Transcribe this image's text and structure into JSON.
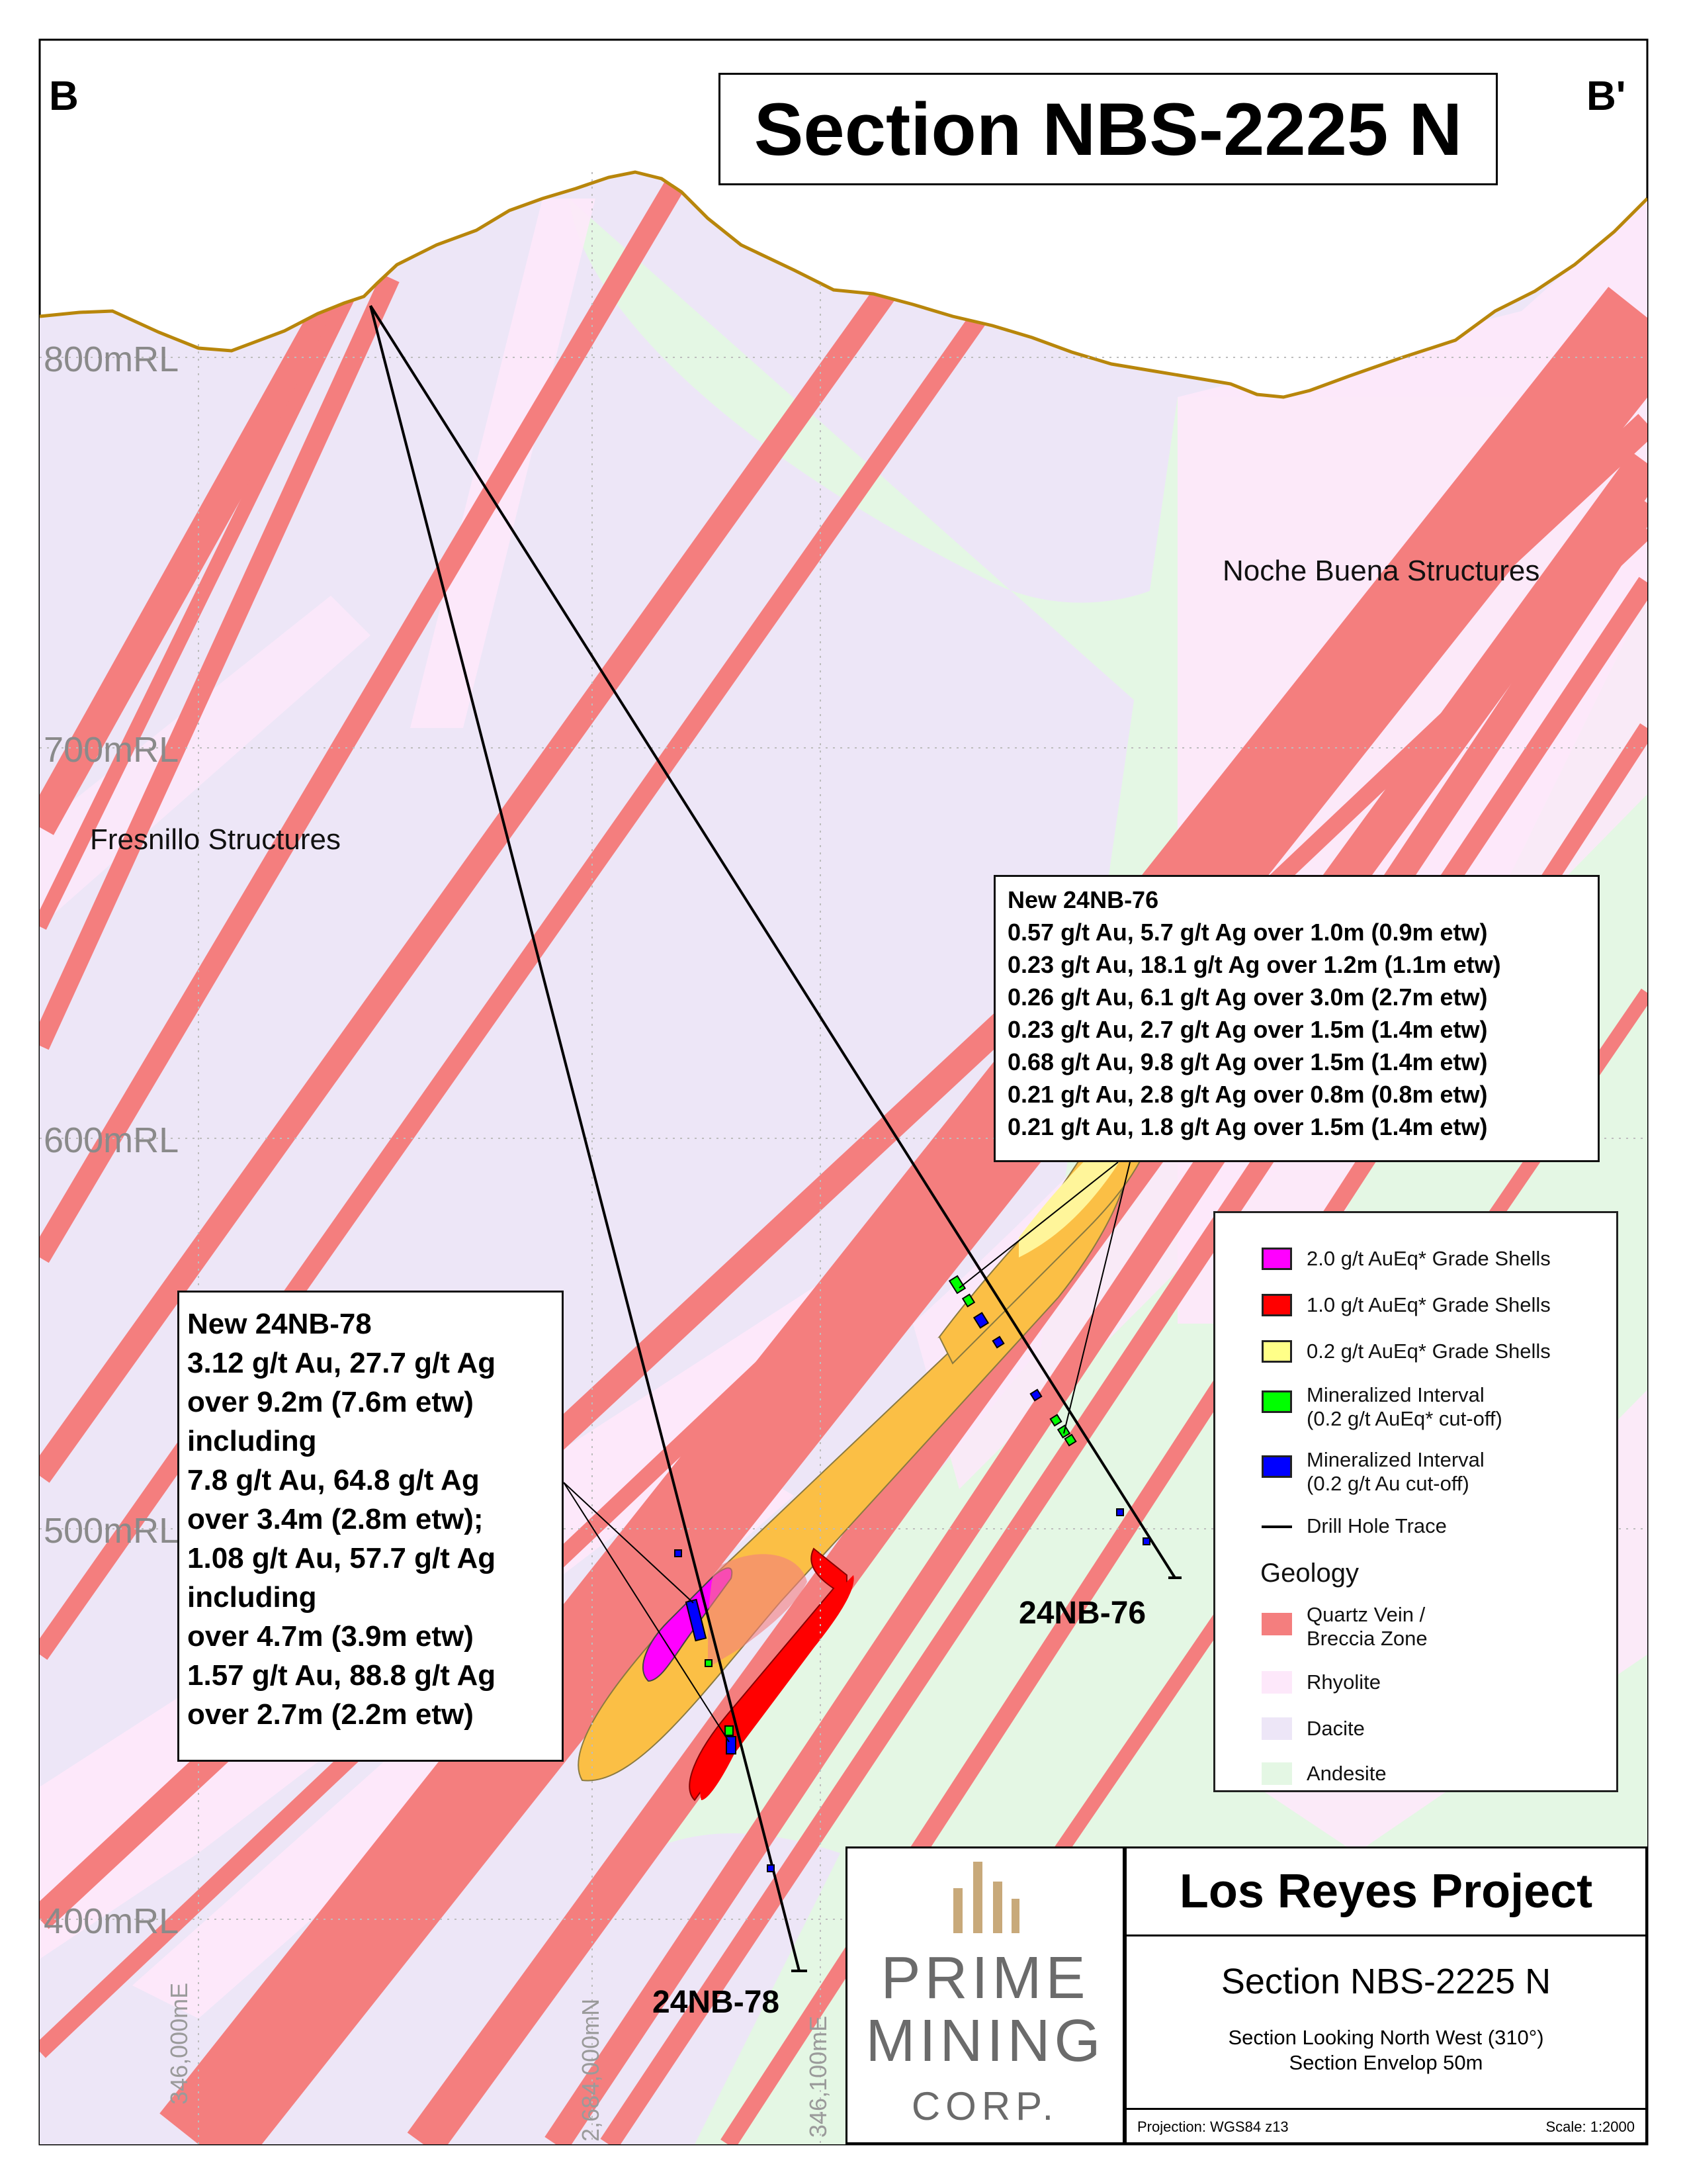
{
  "header": {
    "section_title": "Section NBS-2225 N",
    "left_label": "B",
    "right_label": "B'"
  },
  "elevation_labels": [
    "800mRL",
    "700mRL",
    "600mRL",
    "500mRL",
    "400mRL"
  ],
  "grid_labels": [
    "346,000mE",
    "2,684,000mN",
    "346,100mE"
  ],
  "structures": {
    "noche_buena": "Noche Buena Structures",
    "fresnillo": "Fresnillo Structures"
  },
  "drill_holes": {
    "hole_76": "24NB-76",
    "hole_78": "24NB-78"
  },
  "intervals_76": {
    "title": "New 24NB-76",
    "lines": [
      "0.57 g/t Au, 5.7 g/t Ag over 1.0m (0.9m etw)",
      "0.23 g/t Au, 18.1 g/t Ag over 1.2m (1.1m etw)",
      "0.26 g/t Au, 6.1 g/t Ag over 3.0m (2.7m etw)",
      "0.23 g/t Au, 2.7 g/t Ag over 1.5m (1.4m etw)",
      "0.68 g/t Au, 9.8 g/t Ag over 1.5m (1.4m etw)",
      "0.21 g/t Au, 2.8 g/t Ag over 0.8m (0.8m etw)",
      "0.21 g/t Au, 1.8 g/t Ag over 1.5m (1.4m etw)"
    ]
  },
  "intervals_78": {
    "title": "New 24NB-78",
    "lines": [
      "3.12 g/t Au, 27.7 g/t Ag",
      "over 9.2m (7.6m etw)",
      "including",
      "7.8 g/t Au, 64.8 g/t Ag",
      "over 3.4m (2.8m etw);",
      "1.08 g/t Au, 57.7 g/t Ag",
      "including",
      "over 4.7m (3.9m etw)",
      "1.57 g/t Au, 88.8 g/t Ag",
      "over 2.7m (2.2m etw)"
    ]
  },
  "legend": {
    "items": [
      {
        "label": "2.0 g/t AuEq* Grade Shells",
        "color": "#ff00ff"
      },
      {
        "label": "1.0 g/t AuEq* Grade Shells",
        "color": "#ff0000"
      },
      {
        "label": "0.2 g/t AuEq* Grade Shells",
        "color": "#ffff88"
      },
      {
        "label": "Mineralized Interval",
        "label2": "(0.2 g/t AuEq* cut-off)",
        "color": "#00ff00"
      },
      {
        "label": "Mineralized Interval",
        "label2": "(0.2 g/t Au cut-off)",
        "color": "#0000ff"
      }
    ],
    "trace_label": "Drill Hole Trace",
    "geology_heading": "Geology",
    "geology": [
      {
        "label": "Quartz Vein /",
        "label2": "Breccia Zone",
        "color": "#f47e7e"
      },
      {
        "label": "Rhyolite",
        "color": "#fde8fa"
      },
      {
        "label": "Dacite",
        "color": "#ede6f7"
      },
      {
        "label": "Andesite",
        "color": "#e4f7e4"
      }
    ]
  },
  "logo": {
    "line1": "PRIME",
    "line2": "MINING",
    "line3": "CORP.",
    "color": "#6b6b6b",
    "accent": "#c8a97a"
  },
  "title_block": {
    "project": "Los Reyes Project",
    "section": "Section NBS-2225 N",
    "looking": "Section Looking North West (310°)",
    "envelop": "Section Envelop 50m",
    "projection": "Projection: WGS84 z13",
    "scale": "Scale: 1:2000"
  },
  "colors": {
    "vein": "#f47e7e",
    "rhyolite": "#fde8fa",
    "dacite": "#ede6f7",
    "andesite": "#e4f7e4",
    "shell_low": "#fbbf45",
    "topo": "#b8860b"
  }
}
